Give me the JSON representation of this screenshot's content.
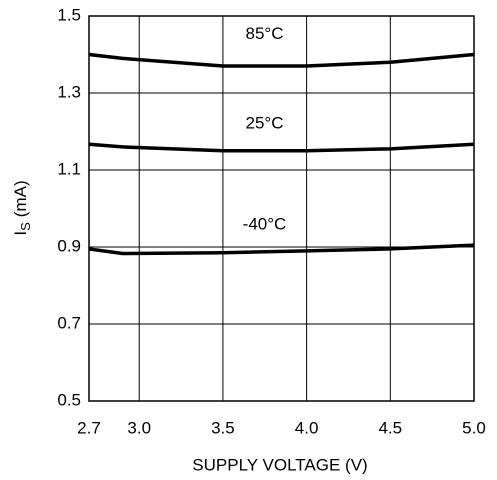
{
  "chart_data": {
    "type": "line",
    "x_label": "SUPPLY VOLTAGE (V)",
    "y_label": {
      "symbol": "I",
      "subscript": "S",
      "unit": "(mA)"
    },
    "x": [
      2.7,
      2.9,
      3.5,
      4.0,
      4.5,
      5.0
    ],
    "series": [
      {
        "name": "85°C",
        "color": "#000000",
        "values": [
          1.4,
          1.39,
          1.37,
          1.37,
          1.38,
          1.4
        ]
      },
      {
        "name": "25°C",
        "color": "#000000",
        "values": [
          1.167,
          1.16,
          1.15,
          1.15,
          1.155,
          1.167
        ]
      },
      {
        "name": "-40°C",
        "color": "#000000",
        "values": [
          0.895,
          0.883,
          0.885,
          0.89,
          0.895,
          0.905
        ]
      }
    ],
    "xlim": [
      2.7,
      5.0
    ],
    "xticks": [
      2.7,
      {
        "value": 3,
        "label": "3.0"
      },
      3.5,
      {
        "value": 4,
        "label": "4.0"
      },
      4.5,
      {
        "value": 5,
        "label": "5.0"
      }
    ],
    "ylim": [
      0.5,
      1.5
    ],
    "yticks": [
      0.5,
      0.7,
      0.9,
      1.1,
      1.3,
      1.5
    ],
    "grid": true
  }
}
